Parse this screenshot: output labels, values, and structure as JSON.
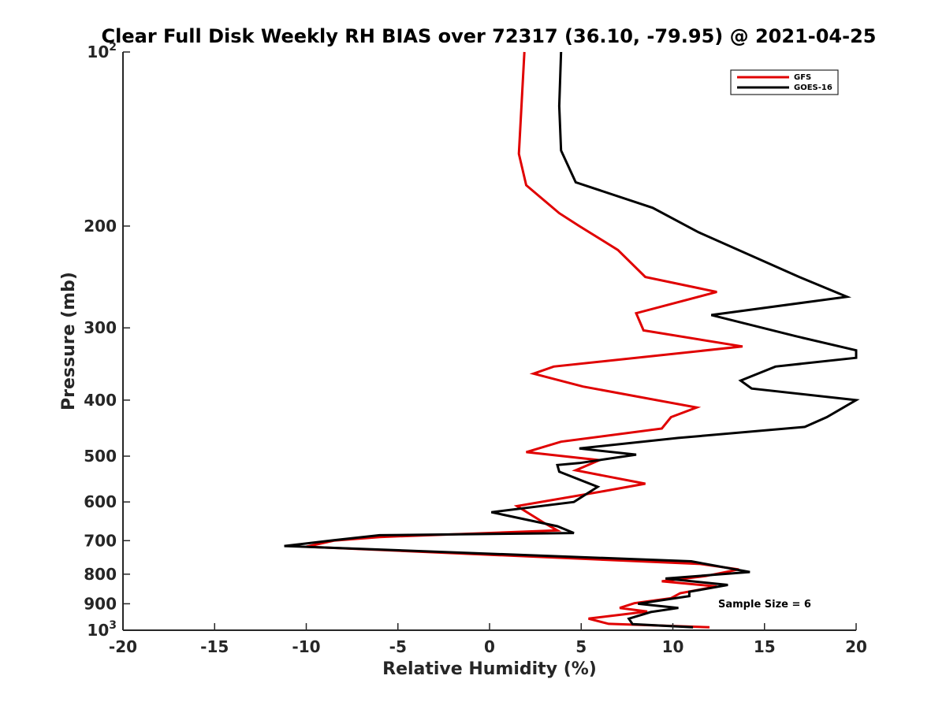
{
  "chart_data": {
    "type": "line",
    "title": "Clear Full Disk Weekly RH BIAS over 72317 (36.10, -79.95) @ 2021-04-25",
    "xlabel": "Relative Humidity (%)",
    "ylabel": "Pressure (mb)",
    "xlim": [
      -20,
      20
    ],
    "ylim": [
      100,
      1000
    ],
    "y_scale": "log",
    "y_reversed": true,
    "x_ticks": [
      -20,
      -15,
      -10,
      -5,
      0,
      5,
      10,
      15,
      20
    ],
    "x_tick_labels": [
      "-20",
      "-15",
      "-10",
      "-5",
      "0",
      "5",
      "10",
      "15",
      "20"
    ],
    "y_ticks": [
      100,
      200,
      300,
      400,
      500,
      600,
      700,
      800,
      900,
      1000
    ],
    "y_tick_labels": [
      {
        "base": "10",
        "exp": "2"
      },
      {
        "base": "200",
        "exp": ""
      },
      {
        "base": "300",
        "exp": ""
      },
      {
        "base": "400",
        "exp": ""
      },
      {
        "base": "500",
        "exp": ""
      },
      {
        "base": "600",
        "exp": ""
      },
      {
        "base": "700",
        "exp": ""
      },
      {
        "base": "800",
        "exp": ""
      },
      {
        "base": "900",
        "exp": ""
      },
      {
        "base": "10",
        "exp": "3"
      }
    ],
    "grid": false,
    "legend_position": "top-right",
    "annotation": "Sample Size = 6",
    "series": [
      {
        "name": "GFS",
        "color": "#e00000",
        "points": [
          [
            1.9,
            100
          ],
          [
            1.6,
            150
          ],
          [
            2.0,
            170
          ],
          [
            3.8,
            190
          ],
          [
            4.9,
            200
          ],
          [
            7.0,
            220
          ],
          [
            8.5,
            245
          ],
          [
            12.4,
            260
          ],
          [
            8.0,
            283
          ],
          [
            8.4,
            303
          ],
          [
            13.8,
            323
          ],
          [
            3.5,
            350
          ],
          [
            2.4,
            360
          ],
          [
            5.1,
            379
          ],
          [
            11.3,
            412
          ],
          [
            9.9,
            428
          ],
          [
            9.4,
            448
          ],
          [
            3.9,
            472
          ],
          [
            2.0,
            492
          ],
          [
            6.0,
            508
          ],
          [
            4.7,
            529
          ],
          [
            8.5,
            558
          ],
          [
            6.2,
            575
          ],
          [
            1.5,
            610
          ],
          [
            3.0,
            653
          ],
          [
            3.7,
            672
          ],
          [
            -6.0,
            690
          ],
          [
            -8.5,
            700
          ],
          [
            -10.0,
            717
          ],
          [
            11.5,
            768
          ],
          [
            13.6,
            785
          ],
          [
            11.8,
            806
          ],
          [
            9.4,
            823
          ],
          [
            12.4,
            840
          ],
          [
            10.4,
            863
          ],
          [
            9.9,
            880
          ],
          [
            7.9,
            898
          ],
          [
            7.1,
            915
          ],
          [
            8.6,
            928
          ],
          [
            5.4,
            955
          ],
          [
            6.5,
            975
          ],
          [
            12.0,
            988
          ]
        ]
      },
      {
        "name": "GOES-16",
        "color": "#000000",
        "points": [
          [
            3.9,
            100
          ],
          [
            3.8,
            124
          ],
          [
            3.9,
            148
          ],
          [
            4.7,
            168
          ],
          [
            8.9,
            186
          ],
          [
            11.4,
            205
          ],
          [
            16.9,
            245
          ],
          [
            19.5,
            265
          ],
          [
            12.1,
            285
          ],
          [
            16.7,
            310
          ],
          [
            20.0,
            328
          ],
          [
            20.0,
            338
          ],
          [
            15.6,
            350
          ],
          [
            13.7,
            370
          ],
          [
            14.3,
            382
          ],
          [
            20.0,
            400
          ],
          [
            18.4,
            428
          ],
          [
            17.2,
            445
          ],
          [
            10.3,
            465
          ],
          [
            4.9,
            485
          ],
          [
            8.0,
            497
          ],
          [
            4.9,
            514
          ],
          [
            3.7,
            518
          ],
          [
            3.8,
            532
          ],
          [
            5.9,
            565
          ],
          [
            4.6,
            600
          ],
          [
            0.1,
            625
          ],
          [
            3.7,
            661
          ],
          [
            4.6,
            679
          ],
          [
            -6.0,
            685
          ],
          [
            -8.5,
            699
          ],
          [
            -11.2,
            715
          ],
          [
            11.0,
            760
          ],
          [
            14.2,
            793
          ],
          [
            9.6,
            814
          ],
          [
            13.0,
            835
          ],
          [
            10.9,
            858
          ],
          [
            10.9,
            873
          ],
          [
            8.1,
            900
          ],
          [
            10.3,
            915
          ],
          [
            8.8,
            930
          ],
          [
            7.6,
            955
          ],
          [
            7.8,
            976
          ],
          [
            11.1,
            988
          ]
        ]
      }
    ]
  }
}
